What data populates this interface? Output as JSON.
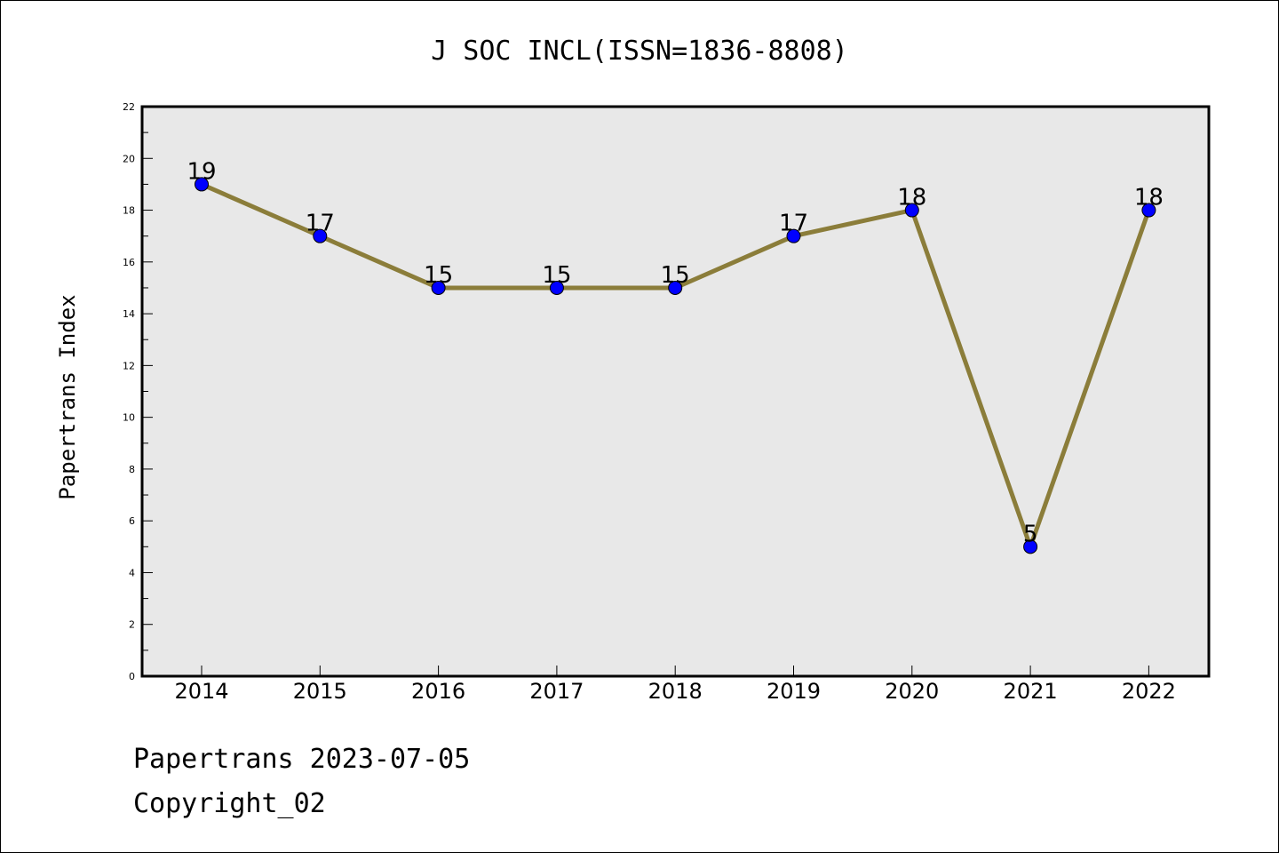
{
  "chart_data": {
    "type": "line",
    "title": "J SOC INCL(ISSN=1836-8808)",
    "xlabel": "",
    "ylabel": "Papertrans Index",
    "categories": [
      "2014",
      "2015",
      "2016",
      "2017",
      "2018",
      "2019",
      "2020",
      "2021",
      "2022"
    ],
    "values": [
      19,
      17,
      15,
      15,
      15,
      17,
      18,
      5,
      18
    ],
    "ylim": [
      0,
      22
    ],
    "yticks": [
      0,
      2,
      4,
      6,
      8,
      10,
      12,
      14,
      16,
      18,
      20,
      22
    ],
    "grid": false,
    "legend": "none",
    "line_color": "#8b7d3a",
    "marker_color": "#0000ff",
    "plot_background": "#e8e8e8"
  },
  "footer": {
    "line1": "Papertrans 2023-07-05",
    "line2": "Copyright_02"
  }
}
